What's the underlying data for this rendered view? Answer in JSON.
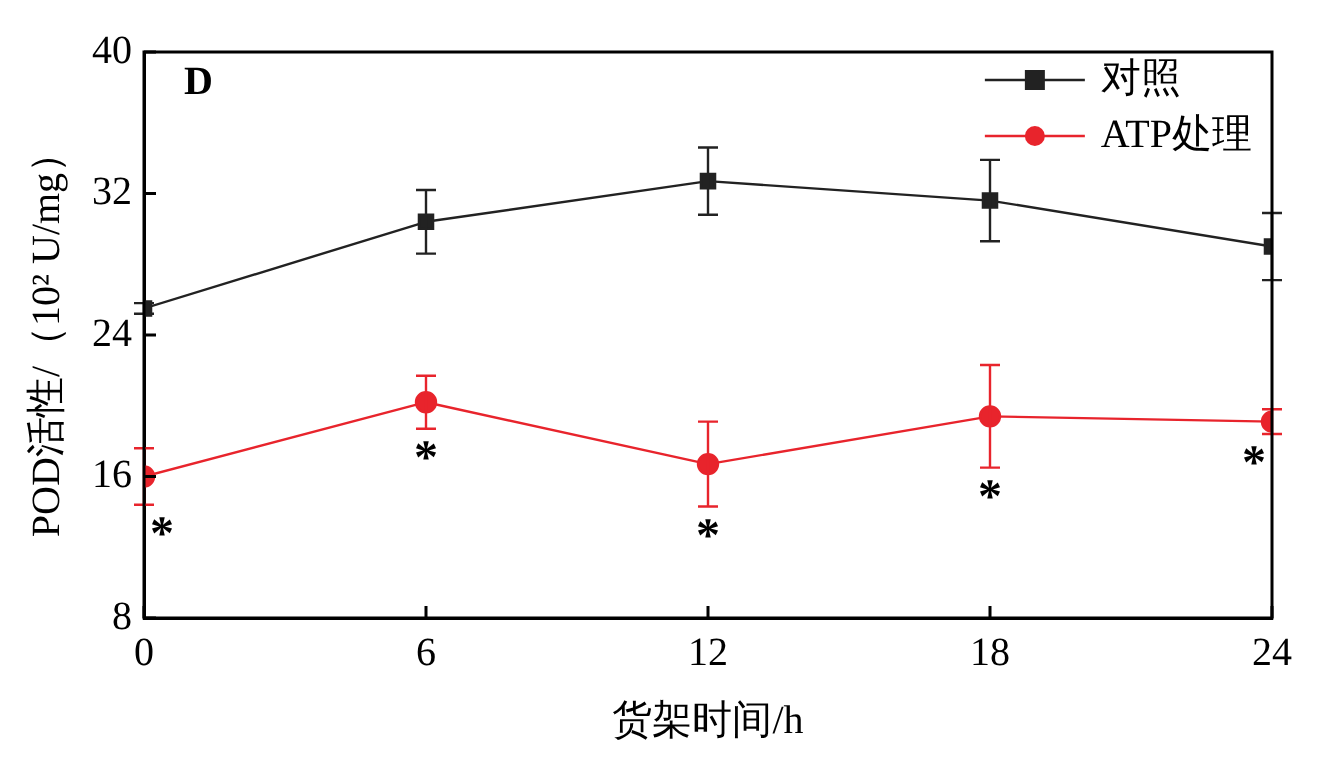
{
  "chart_data": {
    "type": "line",
    "xlabel": "货架时间/h",
    "ylabel": "POD活性/（10² U/mg）",
    "x": [
      0,
      6,
      12,
      18,
      24
    ],
    "xlim": [
      0,
      24
    ],
    "xticks": [
      0,
      6,
      12,
      18,
      24
    ],
    "ylim": [
      8,
      40
    ],
    "yticks": [
      8,
      16,
      24,
      32,
      40
    ],
    "series": [
      {
        "name": "对照",
        "color": "#222222",
        "marker": "square",
        "values": [
          25.5,
          30.4,
          32.7,
          31.6,
          29.0
        ],
        "errors": [
          0.3,
          1.8,
          1.9,
          2.3,
          1.9
        ]
      },
      {
        "name": "ATP处理",
        "color": "#e8242c",
        "marker": "circle",
        "values": [
          16.0,
          20.2,
          16.7,
          19.4,
          19.1
        ],
        "errors": [
          1.6,
          1.5,
          2.4,
          2.9,
          0.7
        ]
      }
    ],
    "annotations": [
      "D",
      "*",
      "*",
      "*",
      "*",
      "*"
    ],
    "legend": "top right",
    "grid": false,
    "line_style": "solid"
  }
}
